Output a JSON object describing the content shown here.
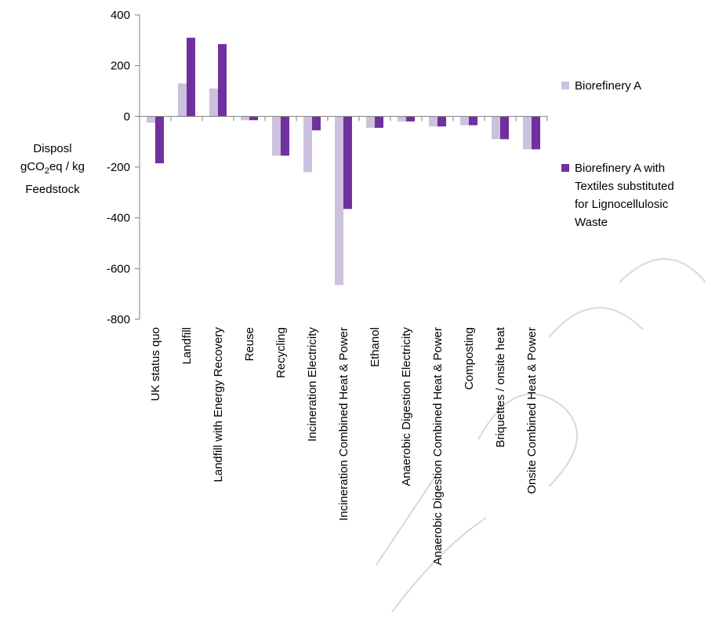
{
  "chart_data": {
    "type": "bar",
    "categories": [
      "UK status quo",
      "Landfill",
      "Landfill with Energy Recovery",
      "Reuse",
      "Recycling",
      "Incineration Electricity",
      "Incineration Combined Heat & Power",
      "Ethanol",
      "Anaerobic Digestion Electricity",
      "Anaerobic Digestion Combined Heat & Power",
      "Composting",
      "Briquettes / onsite heat",
      "Onsite Combined Heat & Power"
    ],
    "series": [
      {
        "name": "Biorefinery A",
        "color": "#ccc1de",
        "values": [
          -25,
          130,
          110,
          -15,
          -155,
          -220,
          -665,
          -45,
          -20,
          -40,
          -35,
          -90,
          -130
        ]
      },
      {
        "name": "Biorefinery A with Textiles substituted for Lignocellulosic Waste",
        "color": "#7030a0",
        "values": [
          -185,
          310,
          285,
          -15,
          -155,
          -55,
          -365,
          -45,
          -20,
          -40,
          -35,
          -90,
          -130
        ]
      }
    ],
    "ylim": [
      -800,
      400
    ],
    "yticks": [
      "400",
      "200",
      "0",
      "-200",
      "-400",
      "-600",
      "-800"
    ],
    "ylabel": {
      "line1": "Disposl",
      "line2_pre": "gCO",
      "line2_sub": "2",
      "line2_post": "eq / kg",
      "line3": "Feedstock"
    },
    "legend_position": "right",
    "legend": [
      {
        "line1": "Biorefinery A"
      },
      {
        "line1": "Biorefinery A with",
        "line2": "Textiles substituted",
        "line3": "for Lignocellulosic",
        "line4": "Waste"
      }
    ],
    "grid": false
  }
}
